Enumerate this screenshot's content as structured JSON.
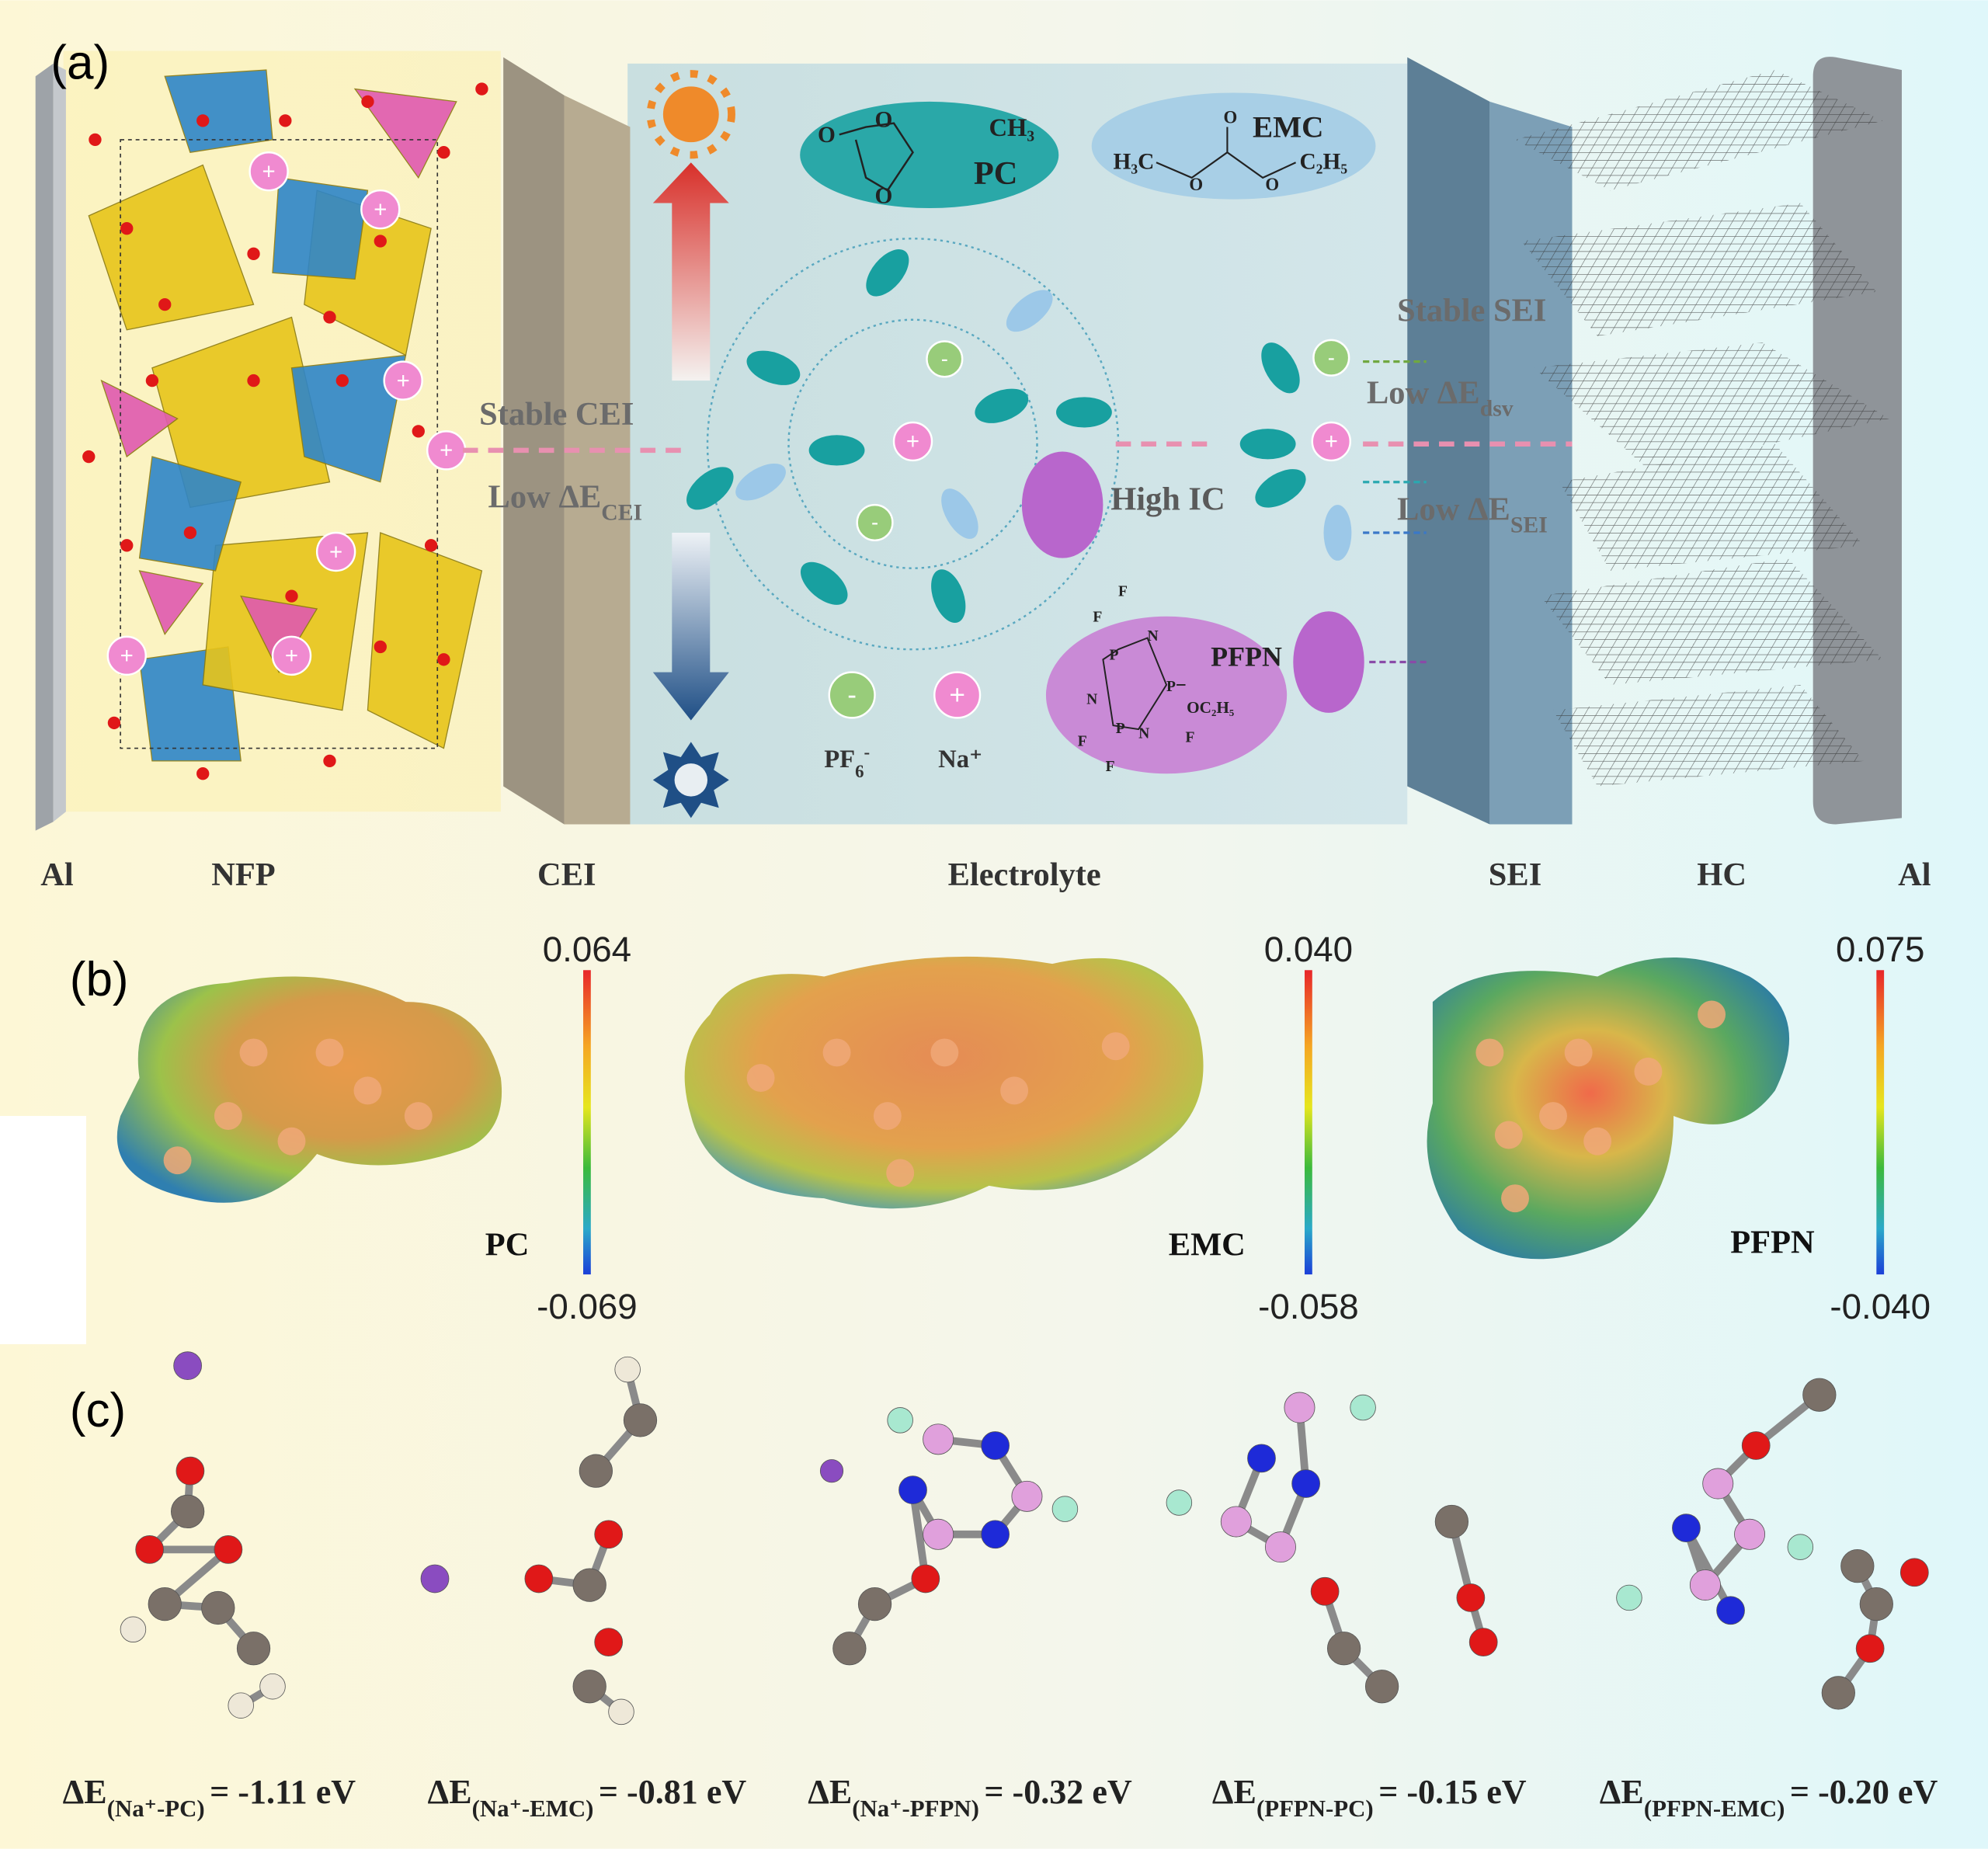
{
  "panel_labels": [
    "(a)",
    "(b)",
    "(c)"
  ],
  "panel_a": {
    "layers": [
      "Al",
      "NFP",
      "CEI",
      "Electrolyte",
      "SEI",
      "HC",
      "Al"
    ],
    "annotations": {
      "stable_cei": "Stable CEI",
      "low_e_cei": {
        "main": "Low ΔE",
        "sub": "CEI"
      },
      "high_ic": "High IC",
      "stable_sei": "Stable SEI",
      "low_e_dsv": {
        "main": "Low ΔE",
        "sub": "dsv"
      },
      "low_e_sei": {
        "main": "Low ΔE",
        "sub": "SEI"
      }
    },
    "legend": {
      "anion": {
        "main": "PF",
        "sub": "6",
        "sup": "-"
      },
      "cation": "Na⁺",
      "anion_sign": "-",
      "cation_sign": "+"
    },
    "molecules": {
      "pc": {
        "name": "PC",
        "methyl": "CH₃",
        "atoms": [
          "O",
          "O",
          "O"
        ]
      },
      "emc": {
        "name": "EMC",
        "left": "H₃C",
        "right": "C₂H₅",
        "atoms": [
          "O",
          "O",
          "O"
        ]
      },
      "pfpn": {
        "name": "PFPN",
        "substituent": "OC₂H₅",
        "atoms": [
          "F",
          "F",
          "P",
          "N",
          "P",
          "N",
          "N",
          "P",
          "F",
          "F",
          "F"
        ]
      }
    }
  },
  "panel_b": {
    "maps": [
      {
        "name": "PC",
        "max": "0.064",
        "min": "-0.069"
      },
      {
        "name": "EMC",
        "max": "0.040",
        "min": "-0.058"
      },
      {
        "name": "PFPN",
        "max": "0.075",
        "min": "-0.040"
      }
    ]
  },
  "panel_c": {
    "energies": [
      {
        "main": "ΔE",
        "sub": "(Na⁺-PC)",
        "rest": "= -1.11 eV"
      },
      {
        "main": "ΔE",
        "sub": "(Na⁺-EMC)",
        "rest": "= -0.81 eV"
      },
      {
        "main": "ΔE",
        "sub": "(Na⁺-PFPN)",
        "rest": "= -0.32 eV"
      },
      {
        "main": "ΔE",
        "sub": "(PFPN-PC)",
        "rest": "= -0.15 eV"
      },
      {
        "main": "ΔE",
        "sub": "(PFPN-EMC)",
        "rest": "= -0.20 eV"
      }
    ]
  }
}
